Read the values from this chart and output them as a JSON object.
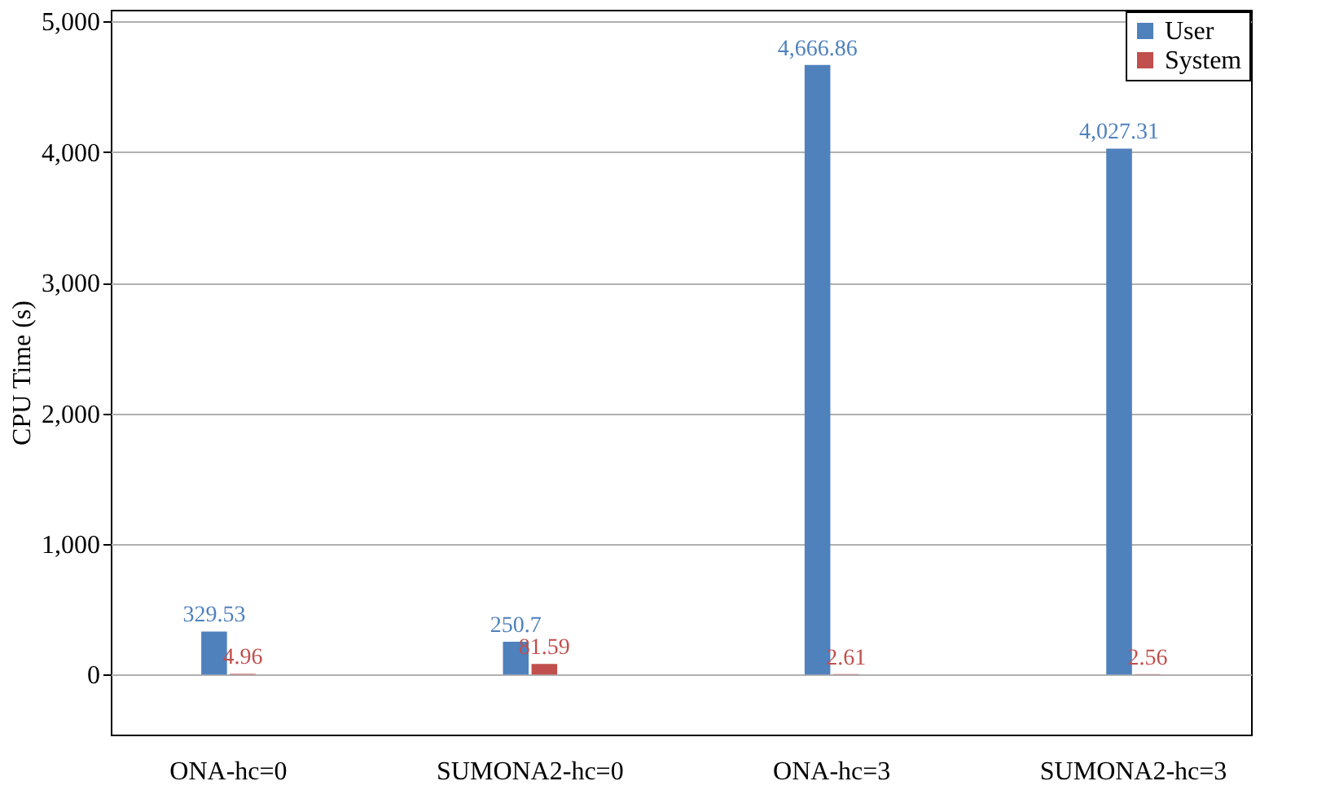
{
  "chart_data": {
    "type": "bar",
    "ylabel": "CPU Time (s)",
    "categories": [
      "ONA-hc=0",
      "SUMONA2-hc=0",
      "ONA-hc=3",
      "SUMONA2-hc=3"
    ],
    "series": [
      {
        "name": "User",
        "color": "#4f81bd",
        "values": [
          329.53,
          250.7,
          4666.86,
          4027.31
        ],
        "value_labels": [
          "329.53",
          "250.7",
          "4,666.86",
          "4,027.31"
        ]
      },
      {
        "name": "System",
        "color": "#c0504d",
        "values": [
          4.96,
          81.59,
          2.61,
          2.56
        ],
        "value_labels": [
          "4.96",
          "81.59",
          "2.61",
          "2.56"
        ]
      }
    ],
    "ylim": [
      -460,
      5090
    ],
    "yticks": [
      {
        "value": 0,
        "label": "0"
      },
      {
        "value": 1000,
        "label": "1,000"
      },
      {
        "value": 2000,
        "label": "2,000"
      },
      {
        "value": 3000,
        "label": "3,000"
      },
      {
        "value": 4000,
        "label": "4,000"
      },
      {
        "value": 5000,
        "label": "5,000"
      }
    ],
    "grid": "y",
    "legend": "top right"
  }
}
